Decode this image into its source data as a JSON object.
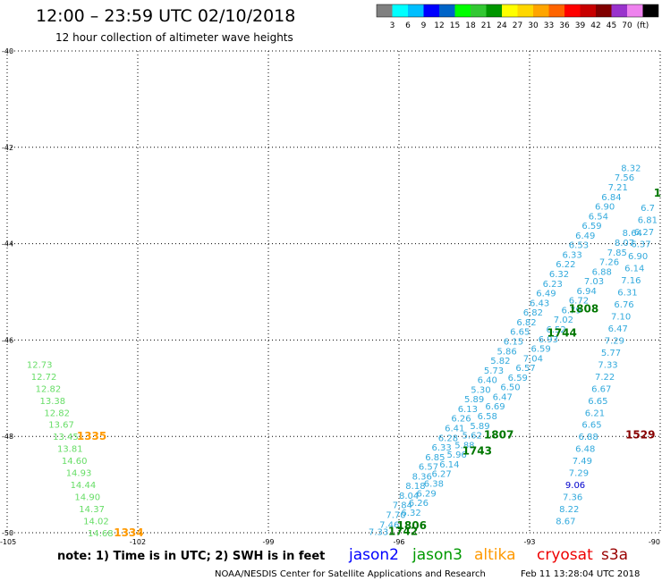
{
  "title": "12:00 – 23:59 UTC 02/10/2018",
  "subtitle": "12 hour collection of altimeter wave heights",
  "color_scale": {
    "colors": [
      "#808080",
      "#00ffff",
      "#00bfff",
      "#0000ff",
      "#0064c8",
      "#00ff00",
      "#32c832",
      "#009600",
      "#ffff00",
      "#ffd700",
      "#ffa500",
      "#ff6400",
      "#ff0000",
      "#c80000",
      "#800000",
      "#9932cc",
      "#ee82ee",
      "#000000"
    ],
    "labels": [
      "3",
      "6",
      "9",
      "12",
      "15",
      "18",
      "21",
      "24",
      "27",
      "30",
      "33",
      "36",
      "39",
      "42",
      "45",
      "70",
      "(ft)"
    ]
  },
  "lat_labels": [
    "-40",
    "-42",
    "-44",
    "-46",
    "-48",
    "-50"
  ],
  "lon_labels": [
    "-105",
    "-102",
    "-99",
    "-96",
    "-93",
    "-90"
  ],
  "observations": [
    {
      "t": "7.33",
      "lon": -96.7,
      "lat": -49.97,
      "c": "#33aadd"
    },
    {
      "t": "7.46",
      "lon": -96.45,
      "lat": -49.82,
      "c": "#33aadd"
    },
    {
      "t": "7.70",
      "lon": -96.3,
      "lat": -49.62,
      "c": "#33aadd"
    },
    {
      "t": "7.84",
      "lon": -96.15,
      "lat": -49.42,
      "c": "#33aadd"
    },
    {
      "t": "8.04",
      "lon": -96.0,
      "lat": -49.22,
      "c": "#33aadd"
    },
    {
      "t": "8.18",
      "lon": -95.85,
      "lat": -49.02,
      "c": "#33aadd"
    },
    {
      "t": "8.36",
      "lon": -95.7,
      "lat": -48.82,
      "c": "#33aadd"
    },
    {
      "t": "6.57",
      "lon": -95.55,
      "lat": -48.62,
      "c": "#33aadd"
    },
    {
      "t": "6.85",
      "lon": -95.4,
      "lat": -48.42,
      "c": "#33aadd"
    },
    {
      "t": "6.33",
      "lon": -95.25,
      "lat": -48.22,
      "c": "#33aadd"
    },
    {
      "t": "6.28",
      "lon": -95.1,
      "lat": -48.02,
      "c": "#33aadd"
    },
    {
      "t": "6.41",
      "lon": -94.95,
      "lat": -47.82,
      "c": "#33aadd"
    },
    {
      "t": "6.26",
      "lon": -94.8,
      "lat": -47.62,
      "c": "#33aadd"
    },
    {
      "t": "6.13",
      "lon": -94.65,
      "lat": -47.42,
      "c": "#33aadd"
    },
    {
      "t": "5.89",
      "lon": -94.5,
      "lat": -47.22,
      "c": "#33aadd"
    },
    {
      "t": "5.30",
      "lon": -94.35,
      "lat": -47.02,
      "c": "#33aadd"
    },
    {
      "t": "6.40",
      "lon": -94.2,
      "lat": -46.82,
      "c": "#33aadd"
    },
    {
      "t": "5.73",
      "lon": -94.05,
      "lat": -46.62,
      "c": "#33aadd"
    },
    {
      "t": "5.82",
      "lon": -93.9,
      "lat": -46.42,
      "c": "#33aadd"
    },
    {
      "t": "5.86",
      "lon": -93.75,
      "lat": -46.22,
      "c": "#33aadd"
    },
    {
      "t": "6.15",
      "lon": -93.6,
      "lat": -46.02,
      "c": "#33aadd"
    },
    {
      "t": "6.65",
      "lon": -93.45,
      "lat": -45.82,
      "c": "#33aadd"
    },
    {
      "t": "6.82",
      "lon": -93.3,
      "lat": -45.62,
      "c": "#33aadd"
    },
    {
      "t": "6.82",
      "lon": -93.15,
      "lat": -45.42,
      "c": "#33aadd"
    },
    {
      "t": "6.43",
      "lon": -93.0,
      "lat": -45.22,
      "c": "#33aadd"
    },
    {
      "t": "6.49",
      "lon": -92.85,
      "lat": -45.02,
      "c": "#33aadd"
    },
    {
      "t": "6.23",
      "lon": -92.7,
      "lat": -44.82,
      "c": "#33aadd"
    },
    {
      "t": "6.32",
      "lon": -92.55,
      "lat": -44.62,
      "c": "#33aadd"
    },
    {
      "t": "6.22",
      "lon": -92.4,
      "lat": -44.42,
      "c": "#33aadd"
    },
    {
      "t": "6.33",
      "lon": -92.25,
      "lat": -44.22,
      "c": "#33aadd"
    },
    {
      "t": "6.53",
      "lon": -92.1,
      "lat": -44.02,
      "c": "#33aadd"
    },
    {
      "t": "6.49",
      "lon": -91.95,
      "lat": -43.82,
      "c": "#33aadd"
    },
    {
      "t": "6.59",
      "lon": -91.8,
      "lat": -43.62,
      "c": "#33aadd"
    },
    {
      "t": "6.54",
      "lon": -91.65,
      "lat": -43.42,
      "c": "#33aadd"
    },
    {
      "t": "6.90",
      "lon": -91.5,
      "lat": -43.22,
      "c": "#33aadd"
    },
    {
      "t": "6.84",
      "lon": -91.35,
      "lat": -43.02,
      "c": "#33aadd"
    },
    {
      "t": "7.21",
      "lon": -91.2,
      "lat": -42.82,
      "c": "#33aadd"
    },
    {
      "t": "7.56",
      "lon": -91.05,
      "lat": -42.62,
      "c": "#33aadd"
    },
    {
      "t": "8.32",
      "lon": -90.9,
      "lat": -42.42,
      "c": "#33aadd"
    },
    {
      "t": "6.32",
      "lon": -95.95,
      "lat": -49.57,
      "c": "#33aadd"
    },
    {
      "t": "6.26",
      "lon": -95.78,
      "lat": -49.37,
      "c": "#33aadd"
    },
    {
      "t": "6.29",
      "lon": -95.6,
      "lat": -49.17,
      "c": "#33aadd"
    },
    {
      "t": "6.38",
      "lon": -95.43,
      "lat": -48.97,
      "c": "#33aadd"
    },
    {
      "t": "6.27",
      "lon": -95.25,
      "lat": -48.77,
      "c": "#33aadd"
    },
    {
      "t": "6.14",
      "lon": -95.07,
      "lat": -48.57,
      "c": "#33aadd"
    },
    {
      "t": "5.96",
      "lon": -94.9,
      "lat": -48.37,
      "c": "#33aadd"
    },
    {
      "t": "5.88",
      "lon": -94.72,
      "lat": -48.17,
      "c": "#33aadd"
    },
    {
      "t": "5.62",
      "lon": -94.55,
      "lat": -47.97,
      "c": "#33aadd"
    },
    {
      "t": "5.89",
      "lon": -94.37,
      "lat": -47.77,
      "c": "#33aadd"
    },
    {
      "t": "6.58",
      "lon": -94.2,
      "lat": -47.57,
      "c": "#33aadd"
    },
    {
      "t": "6.69",
      "lon": -94.02,
      "lat": -47.37,
      "c": "#33aadd"
    },
    {
      "t": "6.47",
      "lon": -93.85,
      "lat": -47.17,
      "c": "#33aadd"
    },
    {
      "t": "6.50",
      "lon": -93.67,
      "lat": -46.97,
      "c": "#33aadd"
    },
    {
      "t": "6.59",
      "lon": -93.5,
      "lat": -46.77,
      "c": "#33aadd"
    },
    {
      "t": "6.57",
      "lon": -93.32,
      "lat": -46.57,
      "c": "#33aadd"
    },
    {
      "t": "7.04",
      "lon": -93.15,
      "lat": -46.37,
      "c": "#33aadd"
    },
    {
      "t": "6.59",
      "lon": -92.97,
      "lat": -46.17,
      "c": "#33aadd"
    },
    {
      "t": "6.93",
      "lon": -92.8,
      "lat": -45.97,
      "c": "#33aadd"
    },
    {
      "t": "6.52",
      "lon": -92.62,
      "lat": -45.77,
      "c": "#33aadd"
    },
    {
      "t": "7.02",
      "lon": -92.45,
      "lat": -45.57,
      "c": "#33aadd"
    },
    {
      "t": "6.79",
      "lon": -92.27,
      "lat": -45.37,
      "c": "#33aadd"
    },
    {
      "t": "6.72",
      "lon": -92.1,
      "lat": -45.17,
      "c": "#33aadd"
    },
    {
      "t": "6.94",
      "lon": -91.92,
      "lat": -44.97,
      "c": "#33aadd"
    },
    {
      "t": "7.03",
      "lon": -91.75,
      "lat": -44.77,
      "c": "#33aadd"
    },
    {
      "t": "6.88",
      "lon": -91.57,
      "lat": -44.57,
      "c": "#33aadd"
    },
    {
      "t": "7.26",
      "lon": -91.4,
      "lat": -44.37,
      "c": "#33aadd"
    },
    {
      "t": "7.85",
      "lon": -91.22,
      "lat": -44.17,
      "c": "#33aadd"
    },
    {
      "t": "8.07",
      "lon": -91.05,
      "lat": -43.97,
      "c": "#33aadd"
    },
    {
      "t": "8.64",
      "lon": -90.87,
      "lat": -43.77,
      "c": "#33aadd"
    },
    {
      "t": "8.67",
      "lon": -92.4,
      "lat": -49.75,
      "c": "#33aadd"
    },
    {
      "t": "8.22",
      "lon": -92.32,
      "lat": -49.5,
      "c": "#33aadd"
    },
    {
      "t": "7.36",
      "lon": -92.24,
      "lat": -49.25,
      "c": "#33aadd"
    },
    {
      "t": "9.06",
      "lon": -92.18,
      "lat": -49.0,
      "c": "#0000cc"
    },
    {
      "t": "7.29",
      "lon": -92.1,
      "lat": -48.75,
      "c": "#33aadd"
    },
    {
      "t": "7.49",
      "lon": -92.02,
      "lat": -48.5,
      "c": "#33aadd"
    },
    {
      "t": "6.48",
      "lon": -91.95,
      "lat": -48.25,
      "c": "#33aadd"
    },
    {
      "t": "6.88",
      "lon": -91.88,
      "lat": -48.0,
      "c": "#33aadd"
    },
    {
      "t": "6.65",
      "lon": -91.8,
      "lat": -47.75,
      "c": "#33aadd"
    },
    {
      "t": "6.21",
      "lon": -91.73,
      "lat": -47.5,
      "c": "#33aadd"
    },
    {
      "t": "6.65",
      "lon": -91.66,
      "lat": -47.25,
      "c": "#33aadd"
    },
    {
      "t": "6.67",
      "lon": -91.58,
      "lat": -47.0,
      "c": "#33aadd"
    },
    {
      "t": "7.22",
      "lon": -91.5,
      "lat": -46.75,
      "c": "#33aadd"
    },
    {
      "t": "7.33",
      "lon": -91.43,
      "lat": -46.5,
      "c": "#33aadd"
    },
    {
      "t": "5.77",
      "lon": -91.36,
      "lat": -46.25,
      "c": "#33aadd"
    },
    {
      "t": "7.29",
      "lon": -91.28,
      "lat": -46.0,
      "c": "#33aadd"
    },
    {
      "t": "6.47",
      "lon": -91.2,
      "lat": -45.75,
      "c": "#33aadd"
    },
    {
      "t": "7.10",
      "lon": -91.13,
      "lat": -45.5,
      "c": "#33aadd"
    },
    {
      "t": "6.76",
      "lon": -91.06,
      "lat": -45.25,
      "c": "#33aadd"
    },
    {
      "t": "6.31",
      "lon": -90.98,
      "lat": -45.0,
      "c": "#33aadd"
    },
    {
      "t": "7.16",
      "lon": -90.9,
      "lat": -44.75,
      "c": "#33aadd"
    },
    {
      "t": "6.14",
      "lon": -90.82,
      "lat": -44.5,
      "c": "#33aadd"
    },
    {
      "t": "6.90",
      "lon": -90.74,
      "lat": -44.25,
      "c": "#33aadd"
    },
    {
      "t": "6.37",
      "lon": -90.67,
      "lat": -44.0,
      "c": "#33aadd"
    },
    {
      "t": "6.27",
      "lon": -90.6,
      "lat": -43.75,
      "c": "#33aadd"
    },
    {
      "t": "6.81",
      "lon": -90.52,
      "lat": -43.5,
      "c": "#33aadd"
    },
    {
      "t": "6.7",
      "lon": -90.45,
      "lat": -43.25,
      "c": "#33aadd"
    },
    {
      "t": "12.73",
      "lon": -104.55,
      "lat": -46.5,
      "c": "#66dd66"
    },
    {
      "t": "12.72",
      "lon": -104.45,
      "lat": -46.75,
      "c": "#66dd66"
    },
    {
      "t": "12.82",
      "lon": -104.35,
      "lat": -47.0,
      "c": "#66dd66"
    },
    {
      "t": "13.38",
      "lon": -104.25,
      "lat": -47.25,
      "c": "#66dd66"
    },
    {
      "t": "12.82",
      "lon": -104.15,
      "lat": -47.5,
      "c": "#66dd66"
    },
    {
      "t": "13.67",
      "lon": -104.05,
      "lat": -47.75,
      "c": "#66dd66"
    },
    {
      "t": "13.45",
      "lon": -103.95,
      "lat": -48.0,
      "c": "#66dd66"
    },
    {
      "t": "13.81",
      "lon": -103.85,
      "lat": -48.25,
      "c": "#66dd66"
    },
    {
      "t": "14.60",
      "lon": -103.75,
      "lat": -48.5,
      "c": "#66dd66"
    },
    {
      "t": "14.93",
      "lon": -103.65,
      "lat": -48.75,
      "c": "#66dd66"
    },
    {
      "t": "14.44",
      "lon": -103.55,
      "lat": -49.0,
      "c": "#66dd66"
    },
    {
      "t": "14.90",
      "lon": -103.45,
      "lat": -49.25,
      "c": "#66dd66"
    },
    {
      "t": "14.37",
      "lon": -103.35,
      "lat": -49.5,
      "c": "#66dd66"
    },
    {
      "t": "14.02",
      "lon": -103.25,
      "lat": -49.75,
      "c": "#66dd66"
    },
    {
      "t": "14.68",
      "lon": -103.15,
      "lat": -50.0,
      "c": "#66dd66"
    }
  ],
  "times": [
    {
      "t": "1335",
      "lon": -103.4,
      "lat": -48.0,
      "c": "#ff9900",
      "w": "normal"
    },
    {
      "t": "1334",
      "lon": -102.55,
      "lat": -50.0,
      "c": "#ff9900",
      "w": "bold"
    },
    {
      "t": "1742",
      "lon": -96.25,
      "lat": -49.97,
      "c": "#007700",
      "w": "bold"
    },
    {
      "t": "1806",
      "lon": -96.05,
      "lat": -49.85,
      "c": "#007700",
      "w": "bold"
    },
    {
      "t": "1743",
      "lon": -94.55,
      "lat": -48.3,
      "c": "#007700",
      "w": "bold"
    },
    {
      "t": "1807",
      "lon": -94.05,
      "lat": -47.97,
      "c": "#007700",
      "w": "bold"
    },
    {
      "t": "1744",
      "lon": -92.6,
      "lat": -45.85,
      "c": "#007700",
      "w": "bold"
    },
    {
      "t": "1808",
      "lon": -92.1,
      "lat": -45.35,
      "c": "#007700",
      "w": "bold"
    },
    {
      "t": "1529",
      "lon": -90.8,
      "lat": -47.97,
      "c": "#880000",
      "w": "bold"
    },
    {
      "t": "1",
      "lon": -90.15,
      "lat": -42.95,
      "c": "#007700",
      "w": "bold"
    }
  ],
  "note": "note: 1) Time is in UTC; 2) SWH is in feet",
  "satellites": [
    {
      "name": "jason2",
      "color": "#0000ff"
    },
    {
      "name": "jason3",
      "color": "#009900"
    },
    {
      "name": "altika",
      "color": "#ff9900"
    },
    {
      "name": "cryosat",
      "color": "#ee0000"
    },
    {
      "name": "s3a",
      "color": "#990000"
    }
  ],
  "credit": "NOAA/NESDIS Center for Satellite Applications and Research",
  "timestamp": "Feb 11 13:28:04 UTC 2018"
}
